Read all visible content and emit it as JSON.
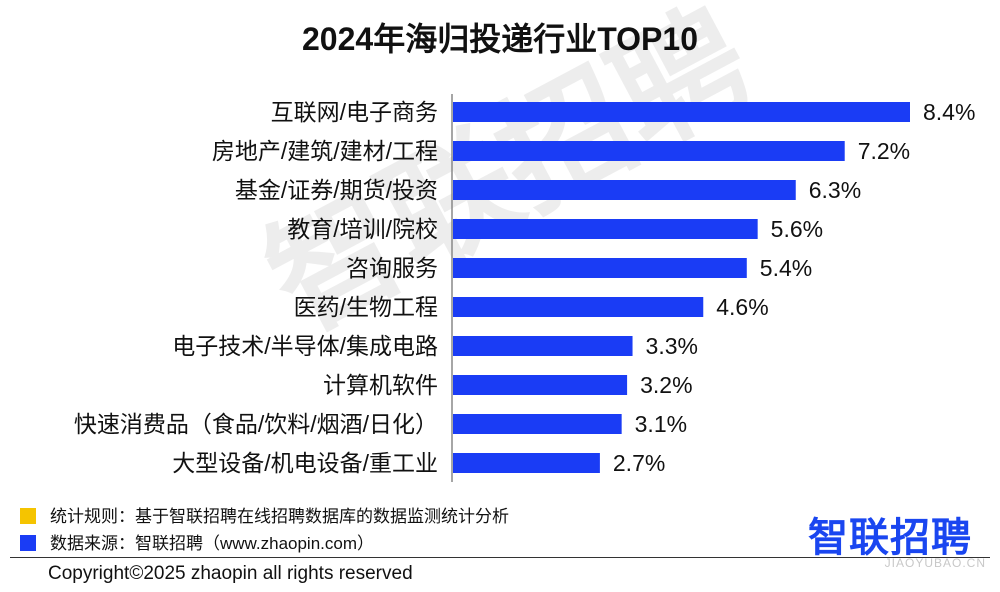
{
  "chart_data": {
    "type": "bar",
    "orientation": "horizontal",
    "title": "2024年海归投递行业TOP10",
    "categories": [
      "互联网/电子商务",
      "房地产/建筑/建材/工程",
      "基金/证券/期货/投资",
      "教育/培训/院校",
      "咨询服务",
      "医药/生物工程",
      "电子技术/半导体/集成电路",
      "计算机软件",
      "快速消费品（食品/饮料/烟酒/日化）",
      "大型设备/机电设备/重工业"
    ],
    "values": [
      8.4,
      7.2,
      6.3,
      5.6,
      5.4,
      4.6,
      3.3,
      3.2,
      3.1,
      2.7
    ],
    "value_labels": [
      "8.4%",
      "7.2%",
      "6.3%",
      "5.6%",
      "5.4%",
      "4.6%",
      "3.3%",
      "3.2%",
      "3.1%",
      "2.7%"
    ],
    "xlim": [
      0,
      8.4
    ],
    "grid": false,
    "bar_color": "#1a3cf5"
  },
  "watermark": "智联招聘",
  "legend": [
    {
      "text": "统计规则：基于智联招聘在线招聘数据库的数据监测统计分析",
      "color": "#f5c400"
    },
    {
      "text": "数据来源：智联招聘（www.zhaopin.com）",
      "color": "#1a3cf5"
    }
  ],
  "brand_logo": "智联招聘",
  "copyright": "Copyright©2025 zhaopin all rights reserved",
  "corner_mark": "JIAOYUBAO.CN"
}
